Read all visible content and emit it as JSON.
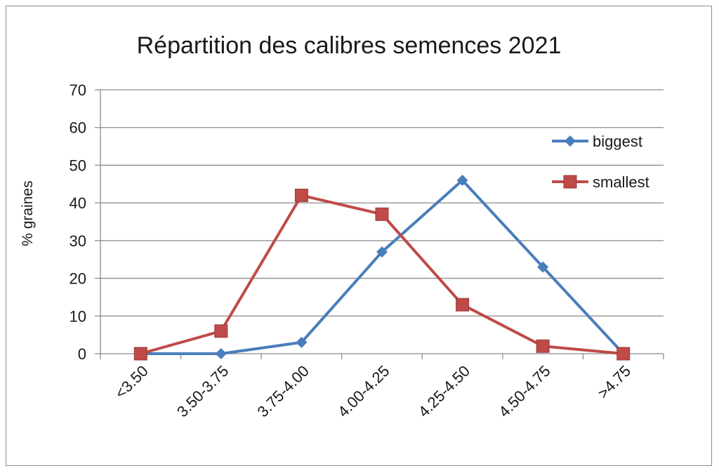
{
  "chart_data": {
    "type": "line",
    "title": "Répartition des calibres semences 2021",
    "xlabel": "",
    "ylabel": "% graines",
    "categories": [
      "<3.50",
      "3.50-3.75",
      "3.75-4.00",
      "4.00-4.25",
      "4.25-4.50",
      "4.50-4.75",
      ">4.75"
    ],
    "ylim": [
      0,
      70
    ],
    "yticks": [
      0,
      10,
      20,
      30,
      40,
      50,
      60,
      70
    ],
    "grid": true,
    "legend_position": "right",
    "series": [
      {
        "name": "biggest",
        "color": "#4a7ebb",
        "marker": "diamond",
        "values": [
          0,
          0,
          3,
          27,
          46,
          23,
          0
        ]
      },
      {
        "name": "smallest",
        "color": "#be4b48",
        "marker": "square",
        "values": [
          0,
          6,
          42,
          37,
          13,
          2,
          0
        ]
      }
    ]
  }
}
